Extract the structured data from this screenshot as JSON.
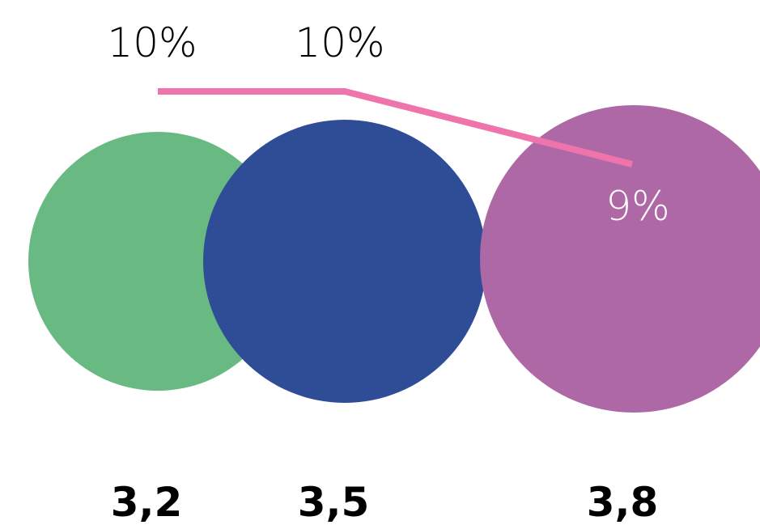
{
  "chart_data": {
    "type": "bubble-line",
    "series": [
      {
        "kind": "bubble",
        "values": [
          3.2,
          3.5,
          3.8
        ],
        "value_labels": [
          "3,2",
          "3,5",
          "3,8"
        ],
        "colors": [
          "#69b983",
          "#2f4c97",
          "#ae68a6"
        ]
      },
      {
        "kind": "line",
        "values": [
          10,
          10,
          9
        ],
        "value_labels": [
          "10%",
          "10%",
          "9%"
        ],
        "color": "#ef74ac"
      }
    ],
    "label_colors": [
      "#000000",
      "#000000",
      "#ffffff"
    ]
  }
}
